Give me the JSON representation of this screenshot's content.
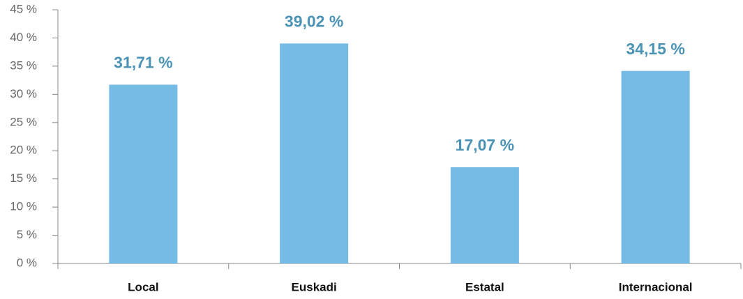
{
  "chart_data": {
    "type": "bar",
    "categories": [
      "Local",
      "Euskadi",
      "Estatal",
      "Internacional"
    ],
    "values": [
      31.71,
      39.02,
      17.07,
      34.15
    ],
    "value_labels": [
      "31,71 %",
      "39,02 %",
      "17,07 %",
      "34,15 %"
    ],
    "color": "#74bbe6",
    "ylim": [
      0,
      45
    ],
    "yticks": [
      {
        "value": 0,
        "label": "0 %"
      },
      {
        "value": 5,
        "label": "5 %"
      },
      {
        "value": 10,
        "label": "10 %"
      },
      {
        "value": 15,
        "label": "15 %"
      },
      {
        "value": 20,
        "label": "20 %"
      },
      {
        "value": 25,
        "label": "25 %"
      },
      {
        "value": 30,
        "label": "30 %"
      },
      {
        "value": 35,
        "label": "35 %"
      },
      {
        "value": 40,
        "label": "40 %"
      },
      {
        "value": 45,
        "label": "45 %"
      }
    ],
    "grid": false
  }
}
